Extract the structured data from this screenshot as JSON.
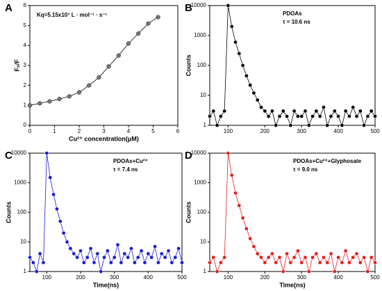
{
  "chart_data": [
    {
      "type": "line",
      "panel": "A",
      "annotation": "Kq=5.15x10⁷ L · mol⁻¹ · s⁻¹",
      "xlabel": "Cu²⁺ concentration(μM)",
      "ylabel": "F₀/F",
      "x": [
        0,
        0.4,
        0.8,
        1.2,
        1.6,
        2.0,
        2.4,
        2.8,
        3.2,
        3.6,
        4.0,
        4.4,
        4.8,
        5.2
      ],
      "series": [
        {
          "color": "#000000",
          "values": [
            1.0,
            1.1,
            1.2,
            1.32,
            1.45,
            1.65,
            2.0,
            2.4,
            2.95,
            3.5,
            4.1,
            4.6,
            5.1,
            5.42
          ]
        }
      ],
      "xlim": [
        0,
        6
      ],
      "xticks": [
        0,
        1,
        2,
        3,
        4,
        5,
        6
      ],
      "ylim": [
        0,
        6
      ],
      "yticks": [
        0,
        1,
        2,
        3,
        4,
        5,
        6
      ]
    },
    {
      "type": "line",
      "panel": "B",
      "annotation": "PDOAs",
      "annotation2": "τ = 10.6 ns",
      "ylabel": "Counts",
      "log_y": true,
      "x": [
        50,
        60,
        70,
        80,
        90,
        100,
        110,
        120,
        130,
        140,
        150,
        160,
        170,
        180,
        190,
        200,
        210,
        220,
        230,
        240,
        250,
        260,
        270,
        280,
        290,
        300,
        310,
        320,
        330,
        340,
        350,
        360,
        370,
        380,
        390,
        400,
        410,
        420,
        430,
        440,
        450,
        460,
        470,
        480,
        490,
        500
      ],
      "series": [
        {
          "color": "#000000",
          "values": [
            2,
            3,
            1,
            2,
            3,
            10000,
            2000,
            600,
            250,
            100,
            45,
            22,
            12,
            7,
            4,
            3,
            2,
            3,
            1,
            2,
            3,
            2,
            1,
            3,
            2,
            2,
            3,
            1,
            2,
            3,
            2,
            4,
            1,
            2,
            3,
            2,
            1,
            3,
            2,
            4,
            2,
            3,
            1,
            2,
            3,
            2
          ]
        }
      ],
      "xlim": [
        50,
        500
      ],
      "xticks": [
        100,
        200,
        300,
        400,
        500
      ],
      "ylim": [
        1,
        10000
      ],
      "yticks": [
        1,
        10,
        100,
        1000,
        10000
      ]
    },
    {
      "type": "line",
      "panel": "C",
      "annotation": "PDOAs+Cu²⁺",
      "annotation2": "τ = 7.4 ns",
      "xlabel": "Time(ns)",
      "ylabel": "Counts",
      "log_y": true,
      "x": [
        50,
        60,
        70,
        80,
        90,
        100,
        110,
        120,
        130,
        140,
        150,
        160,
        170,
        180,
        190,
        200,
        210,
        220,
        230,
        240,
        250,
        260,
        270,
        280,
        290,
        300,
        310,
        320,
        330,
        340,
        350,
        360,
        370,
        380,
        390,
        400,
        410,
        420,
        430,
        440,
        450,
        460,
        470,
        480,
        490,
        500
      ],
      "series": [
        {
          "color": "#1a1ad6",
          "values": [
            3,
            2,
            1,
            4,
            2,
            10000,
            1500,
            400,
            130,
            50,
            20,
            10,
            6,
            4,
            3,
            5,
            2,
            3,
            6,
            2,
            4,
            1,
            3,
            5,
            2,
            3,
            8,
            2,
            4,
            3,
            6,
            2,
            3,
            5,
            2,
            4,
            3,
            7,
            2,
            4,
            3,
            5,
            2,
            3,
            6,
            2
          ]
        }
      ],
      "xlim": [
        50,
        500
      ],
      "xticks": [
        100,
        200,
        300,
        400,
        500
      ],
      "ylim": [
        1,
        10000
      ],
      "yticks": [
        1,
        10,
        100,
        1000,
        10000
      ]
    },
    {
      "type": "line",
      "panel": "D",
      "annotation": "PDOAs+Cu²⁺+Glyphosate",
      "annotation2": "τ = 9.0 ns",
      "xlabel": "Time(ns)",
      "ylabel": "Counts",
      "log_y": true,
      "x": [
        50,
        60,
        70,
        80,
        90,
        100,
        110,
        120,
        130,
        140,
        150,
        160,
        170,
        180,
        190,
        200,
        210,
        220,
        230,
        240,
        250,
        260,
        270,
        280,
        290,
        300,
        310,
        320,
        330,
        340,
        350,
        360,
        370,
        380,
        390,
        400,
        410,
        420,
        430,
        440,
        450,
        460,
        470,
        480,
        490,
        500
      ],
      "series": [
        {
          "color": "#e61e1e",
          "values": [
            2,
            3,
            1,
            2,
            3,
            10000,
            1800,
            450,
            170,
            65,
            28,
            13,
            7,
            4,
            3,
            2,
            3,
            4,
            2,
            3,
            1,
            4,
            2,
            3,
            5,
            2,
            3,
            1,
            3,
            4,
            2,
            3,
            2,
            4,
            1,
            3,
            2,
            5,
            2,
            3,
            4,
            2,
            3,
            1,
            3,
            2
          ]
        }
      ],
      "xlim": [
        50,
        500
      ],
      "xticks": [
        100,
        200,
        300,
        400,
        500
      ],
      "ylim": [
        1,
        10000
      ],
      "yticks": [
        1,
        10,
        100,
        1000,
        10000
      ]
    }
  ]
}
